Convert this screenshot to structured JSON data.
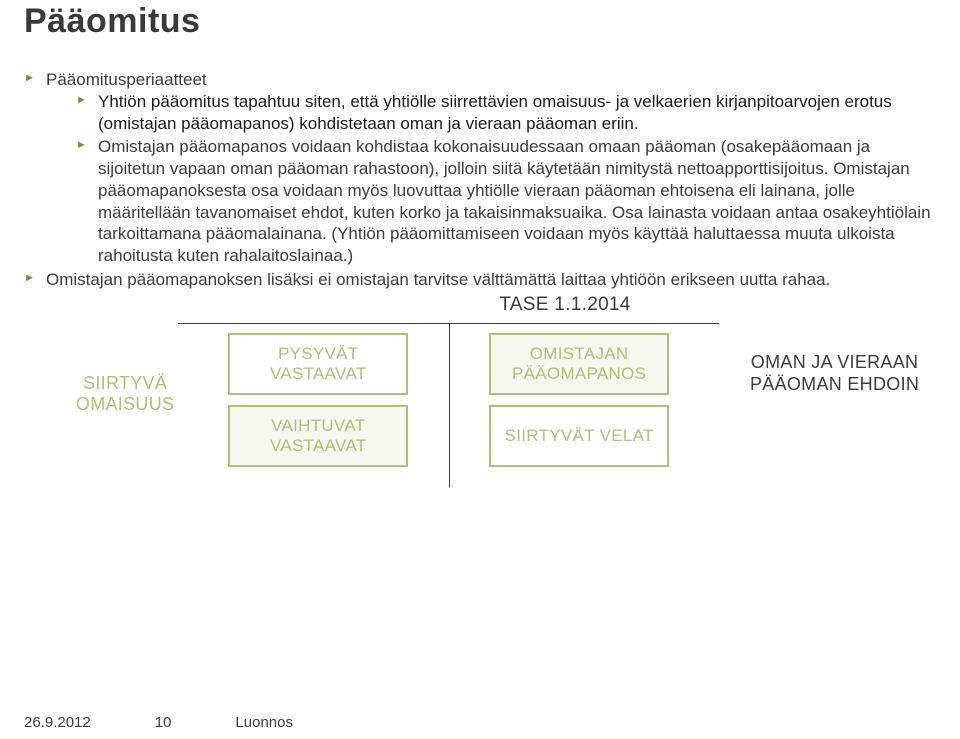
{
  "title": "Pääomitus",
  "bullet_color": "#778a45",
  "bullets": {
    "level1_a": "Pääomitusperiaatteet",
    "level2": [
      "Yhtiön pääomitus tapahtuu siten, että yhtiölle siirrettävien omaisuus- ja velkaerien kirjanpitoarvojen erotus (omistajan pääomapanos) kohdistetaan oman ja vieraan pääoman eriin.",
      "Omistajan pääomapanos voidaan kohdistaa kokonaisuudessaan omaan pääoman (osakepääomaan ja sijoitetun vapaan oman pääoman rahastoon), jolloin siitä käytetään nimitystä nettoapporttisijoitus. Omistajan pääomapanoksesta osa voidaan myös luovuttaa yhtiölle vieraan pääoman ehtoisena eli lainana, jolle määritellään tavanomaiset ehdot, kuten korko ja takaisinmaksuaika. Osa lainasta voidaan antaa osakeyhtiölain tarkoittamana pääomalainana. (Yhtiön pääomittamiseen voidaan myös käyttää haluttaessa muuta ulkoista rahoitusta kuten rahalaitoslainaa.)"
    ],
    "level1_b": "Omistajan pääomapanoksen lisäksi ei omistajan tarvitse välttämättä laittaa yhtiöön erikseen uutta rahaa."
  },
  "chart": {
    "title": "TASE 1.1.2014",
    "left_label": "SIIRTYVÄ OMAISUUS",
    "left_label_color": "#b0be7d",
    "right_label": "OMAN JA VIERAAN PÄÄOMAN EHDOIN",
    "right_label_color": "#3c3c3c",
    "boxes": {
      "tl": {
        "text": "PYSYVÄT VASTAAVAT",
        "fg": "#b0be7d",
        "bg": "#ffffff",
        "border": "#b0be7d"
      },
      "bl": {
        "text": "VAIHTUVAT VASTAAVAT",
        "fg": "#b0be7d",
        "bg": "#f6f8ef",
        "border": "#b0be7d"
      },
      "tr": {
        "text": "OMISTAJAN PÄÄOMAPANOS",
        "fg": "#b0be7d",
        "bg": "#f6f8ef",
        "border": "#b0be7d"
      },
      "br": {
        "text": "SIIRTYVÄT VELAT",
        "fg": "#b0be7d",
        "bg": "#ffffff",
        "border": "#b0be7d"
      }
    }
  },
  "footer": {
    "date": "26.9.2012",
    "page": "10",
    "status": "Luonnos"
  }
}
